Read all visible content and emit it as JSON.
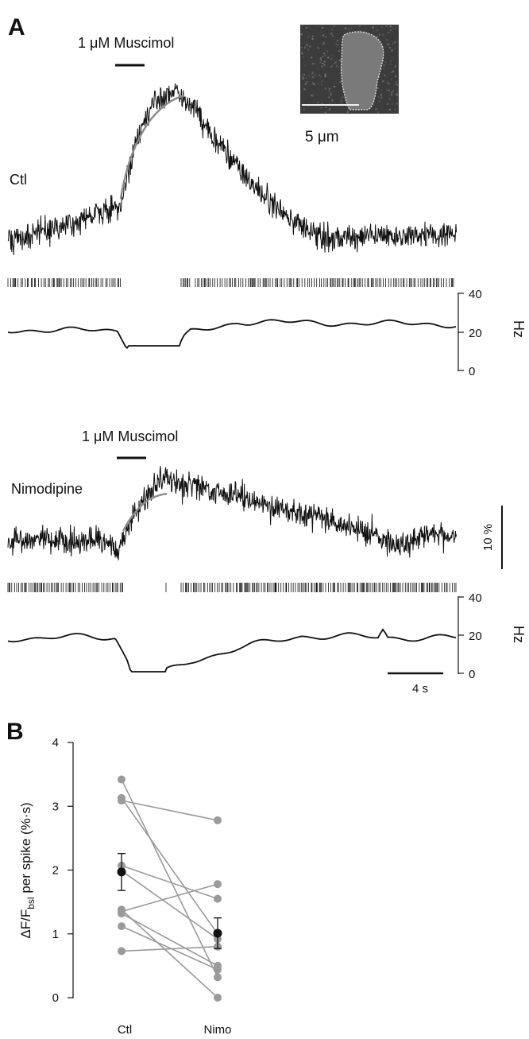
{
  "panels": {
    "a_label": "A",
    "b_label": "B"
  },
  "trace_ctl": {
    "drug_label": "1 μM Muscimol",
    "condition_label": "Ctl",
    "scale_label": "5 μm",
    "hz_ticks": [
      "40",
      "20",
      "0"
    ],
    "hz_unit": "Hz"
  },
  "trace_nimo": {
    "drug_label": "1 μM Muscimol",
    "condition_label": "Nimodipine",
    "hz_ticks": [
      "40",
      "20",
      "0"
    ],
    "hz_unit": "Hz",
    "pct_scale_label": "10 %",
    "time_scale_label": "4 s"
  },
  "colors": {
    "trace": "#111111",
    "fit": "#8c8c8c",
    "marker_gray": "#9a9a9a",
    "marker_mean": "#111111"
  },
  "chart_data": {
    "type": "scatter",
    "title": "",
    "xlabel": "",
    "ylabel": "ΔF/F",
    "ylabel_sub": "bsl",
    "ylabel_rest": " per spike  (%·s)",
    "categories": [
      "Ctl",
      "Nimo"
    ],
    "ylim": [
      0,
      4
    ],
    "yticks": [
      "0",
      "1",
      "2",
      "3",
      "4"
    ],
    "pairs": [
      [
        3.42,
        0.32
      ],
      [
        3.13,
        1.0
      ],
      [
        3.09,
        2.78
      ],
      [
        2.07,
        1.55
      ],
      [
        1.99,
        0.92
      ],
      [
        1.38,
        0.0
      ],
      [
        1.35,
        1.78
      ],
      [
        1.32,
        0.5
      ],
      [
        1.12,
        0.44
      ],
      [
        0.73,
        0.8
      ]
    ],
    "mean": {
      "Ctl": 1.97,
      "Nimo": 1.01
    },
    "sem": {
      "Ctl": 0.29,
      "Nimo": 0.24
    }
  }
}
